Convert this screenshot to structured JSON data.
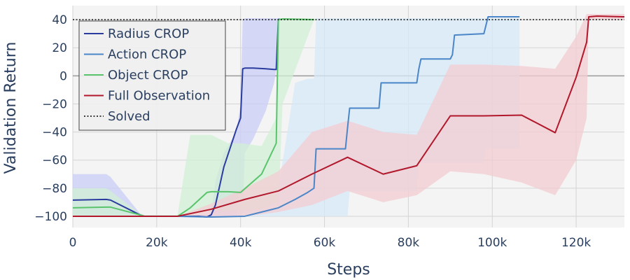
{
  "chart_data": {
    "type": "line",
    "xlabel": "Steps",
    "ylabel": "Validation Return",
    "xlim": [
      0,
      131500
    ],
    "ylim": [
      -108,
      50
    ],
    "xticks": [
      0,
      20000,
      40000,
      60000,
      80000,
      100000,
      120000
    ],
    "xtick_labels": [
      "0",
      "20k",
      "40k",
      "60k",
      "80k",
      "100k",
      "120k"
    ],
    "yticks": [
      -100,
      -80,
      -60,
      -40,
      -20,
      0,
      20,
      40
    ],
    "ytick_labels": [
      "−100",
      "−80",
      "−60",
      "−40",
      "−20",
      "0",
      "20",
      "40"
    ],
    "grid": true,
    "legend_position": "top-left",
    "solved_threshold": 40,
    "series": [
      {
        "name": "Radius CROP",
        "color": "#2a3d9f",
        "band_color": "#c9cdf6",
        "x": [
          0,
          8000,
          9000,
          16000,
          17000,
          25000,
          30000,
          32000,
          33000,
          34000,
          36000,
          39000,
          40000,
          40500,
          41000,
          43000,
          46000,
          48000,
          48500,
          49000,
          49300
        ],
        "y": [
          -88.5,
          -88,
          -88.5,
          -99,
          -100,
          -100,
          -100,
          -100.5,
          -99,
          -92,
          -65,
          -38,
          -30,
          5,
          5.5,
          5.5,
          5,
          4.5,
          4.5,
          40,
          40.5
        ],
        "lower": [
          -100,
          -100,
          -100,
          -100,
          -100,
          -100,
          -100,
          -100,
          -100,
          -100,
          -100,
          -100,
          -80,
          -100,
          -55,
          -45,
          -25,
          -5,
          5,
          5,
          10
        ],
        "upper": [
          -70,
          -70,
          -72,
          -98,
          -99,
          -99,
          -99,
          -99,
          -99,
          -75,
          -55,
          -40,
          -20,
          40,
          41,
          41,
          41,
          41,
          41,
          41,
          41
        ]
      },
      {
        "name": "Action CROP",
        "color": "#4a86c8",
        "band_color": "#d7e9f8",
        "x": [
          25000,
          33000,
          41000,
          49000,
          53000,
          56000,
          57500,
          58000,
          65000,
          65500,
          66000,
          73000,
          73500,
          74000,
          82000,
          82500,
          83000,
          90000,
          90500,
          91000,
          98000,
          98500,
          99000,
          106500
        ],
        "y": [
          -100,
          -100.5,
          -100,
          -94,
          -88,
          -83,
          -80,
          -52,
          -52,
          -37,
          -23,
          -23,
          -5,
          -5,
          -5,
          5,
          12,
          12,
          15,
          29,
          30,
          36,
          42,
          42
        ],
        "lower": [
          -100,
          -100,
          -100,
          -100,
          -100,
          -100,
          -100,
          -100,
          -100,
          -100,
          -82,
          -82,
          -82,
          -82,
          -82,
          -62,
          -62,
          -62,
          -62,
          -62,
          -62,
          -52,
          -52,
          -52
        ],
        "upper": [
          -99,
          -99,
          -90,
          -80,
          -5,
          -2,
          -2,
          41,
          41,
          41,
          41,
          41,
          41,
          41,
          41,
          41,
          41,
          41,
          41,
          41,
          41,
          41,
          41,
          41
        ]
      },
      {
        "name": "Object CROP",
        "color": "#59c46c",
        "band_color": "#d2f0d6",
        "x": [
          0,
          8000,
          9000,
          16000,
          17000,
          25000,
          28000,
          32000,
          33000,
          37000,
          40000,
          45000,
          48500,
          49000,
          50000,
          57500
        ],
        "y": [
          -94,
          -93.5,
          -93.5,
          -99,
          -100,
          -100,
          -94,
          -83,
          -82.5,
          -82.5,
          -83,
          -70,
          -48,
          40,
          40.5,
          40
        ],
        "lower": [
          -100,
          -100,
          -100,
          -100,
          -100,
          -100,
          -100,
          -96,
          -96,
          -96,
          -96,
          -95,
          -90,
          -95,
          -20,
          40
        ],
        "upper": [
          -80,
          -80,
          -82,
          -98,
          -99,
          -99,
          -42,
          -42,
          -42,
          -48,
          -48,
          -50,
          -30,
          40,
          41,
          41
        ]
      },
      {
        "name": "Full Observation",
        "color": "#b2182b",
        "band_color": "#f3ccd2",
        "x": [
          0,
          16000,
          25000,
          33000,
          41000,
          49000,
          57000,
          65500,
          74000,
          82000,
          90000,
          98000,
          107000,
          115000,
          120000,
          122500,
          123000,
          125000,
          131500
        ],
        "y": [
          -100,
          -100,
          -100,
          -95,
          -88,
          -82,
          -70,
          -58,
          -70,
          -64,
          -28.5,
          -28.5,
          -28,
          -40.5,
          -1,
          24,
          42,
          42.5,
          42
        ],
        "lower": [
          -100,
          -100,
          -100,
          -100,
          -100,
          -97,
          -92,
          -82,
          -90,
          -85,
          -68,
          -70,
          -76,
          -85,
          -60,
          -30,
          40,
          40,
          40
        ],
        "upper": [
          -100,
          -100,
          -100,
          -91,
          -80,
          -68,
          -40,
          -32,
          -40,
          -42,
          8,
          8,
          7,
          5,
          28,
          44,
          44,
          44,
          44
        ]
      },
      {
        "name": "Solved",
        "color": "#000000",
        "style": "dotted",
        "x": [
          0,
          131500
        ],
        "y": [
          40,
          40
        ]
      }
    ]
  }
}
